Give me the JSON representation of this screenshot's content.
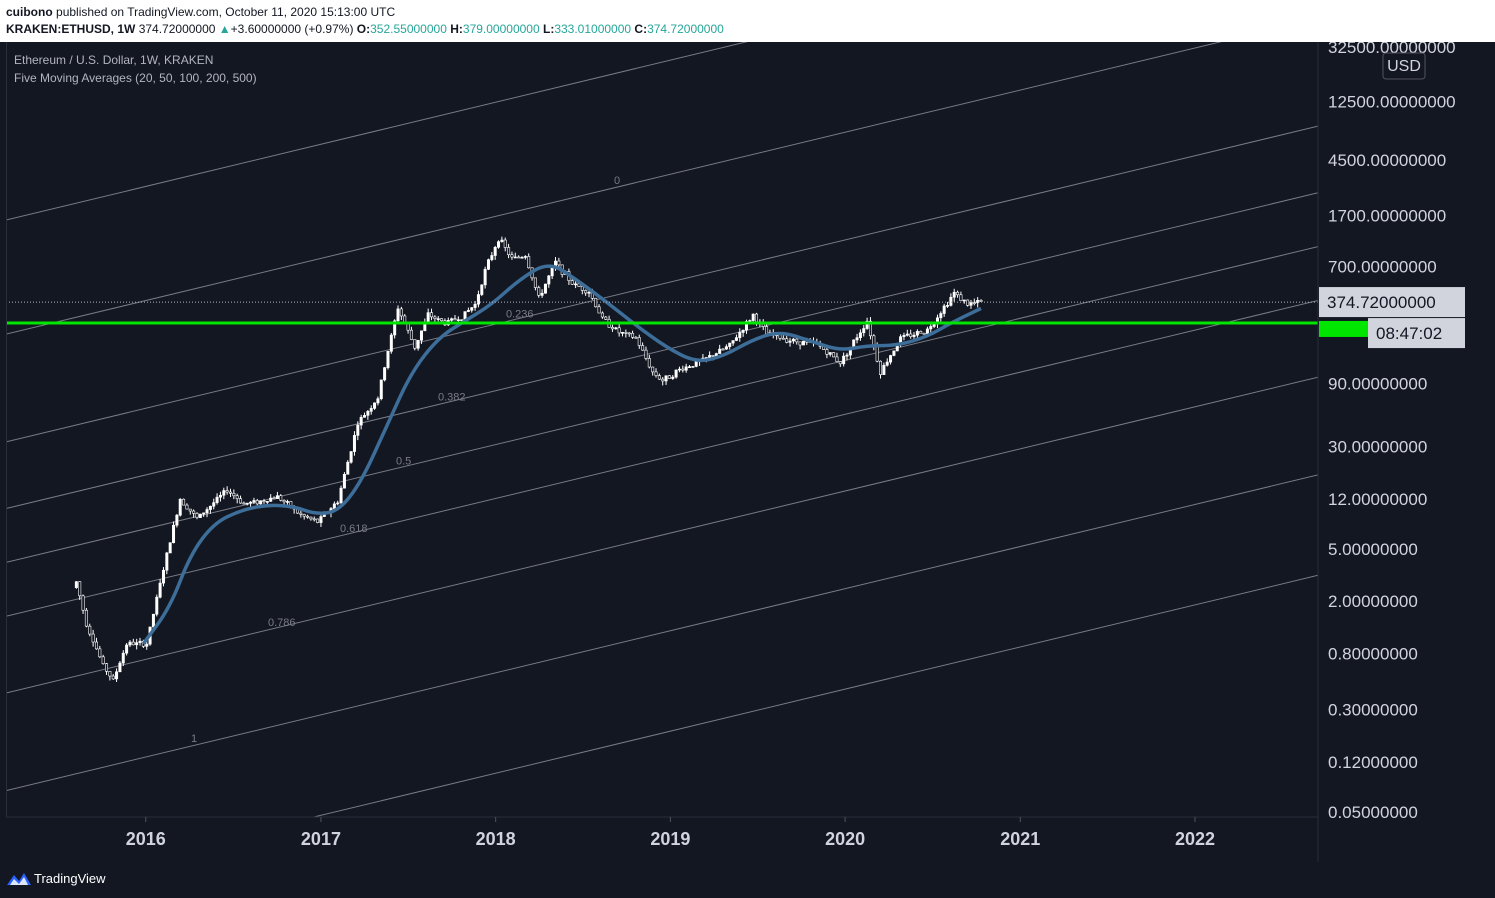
{
  "header": {
    "author": "cuibono",
    "published_text": "published on TradingView.com, October 11, 2020 15:13:00 UTC",
    "symbol": "KRAKEN:ETHUSD, 1W",
    "last": "374.72000000",
    "change_arrow": "▲",
    "change": "+3.60000000 (+0.97%)",
    "open_label": "O:",
    "open": "352.55000000",
    "high_label": "H:",
    "high": "379.00000000",
    "low_label": "L:",
    "low": "333.01000000",
    "close_label": "C:",
    "close": "374.72000000"
  },
  "legend": {
    "title": "Ethereum / U.S. Dollar, 1W, KRAKEN",
    "indicator": "Five Moving Averages (20, 50, 100, 200, 500)"
  },
  "footer": {
    "brand": "TradingView"
  },
  "colors": {
    "background": "#131722",
    "candle": "#ffffff",
    "ma": "#3d6e99",
    "support_line": "#00e600",
    "fib_line": "#787b86",
    "price_tag_bg": "#d1d4dc"
  },
  "chart_data": {
    "type": "candlestick",
    "y_scale": "log",
    "ylim": [
      0.05,
      32500
    ],
    "xlim": [
      "2015-03-15",
      "2022-09-15"
    ],
    "currency_label": "USD",
    "y_ticks": [
      "32500.00000000",
      "12500.00000000",
      "4500.00000000",
      "1700.00000000",
      "700.00000000",
      "90.00000000",
      "30.00000000",
      "12.00000000",
      "5.00000000",
      "2.00000000",
      "0.80000000",
      "0.30000000",
      "0.12000000",
      "0.05000000"
    ],
    "y_tick_values": [
      32500,
      12500,
      4500,
      1700,
      700,
      90,
      30,
      12,
      5,
      2,
      0.8,
      0.3,
      0.12,
      0.05
    ],
    "x_ticks": [
      "2016",
      "2017",
      "2018",
      "2019",
      "2020",
      "2021",
      "2022"
    ],
    "x_tick_dates": [
      "2016-01-01",
      "2017-01-01",
      "2018-01-01",
      "2019-01-01",
      "2020-01-01",
      "2021-01-01",
      "2022-01-01"
    ],
    "last_price_label": "374.72000000",
    "last_price_value": 374.72,
    "countdown_label": "08:47:02",
    "support_level": 260,
    "fib_channel_levels": [
      "0",
      "0.236",
      "0.382",
      "0.5",
      "0.618",
      "0.786",
      "1"
    ],
    "price_path": [
      [
        "2015-08-09",
        2.8
      ],
      [
        "2015-08-30",
        1.35
      ],
      [
        "2015-10-04",
        0.65
      ],
      [
        "2015-10-25",
        0.5
      ],
      [
        "2015-11-22",
        0.95
      ],
      [
        "2016-01-03",
        0.95
      ],
      [
        "2016-02-07",
        3.5
      ],
      [
        "2016-03-13",
        12
      ],
      [
        "2016-04-17",
        8.5
      ],
      [
        "2016-06-19",
        14
      ],
      [
        "2016-07-24",
        11
      ],
      [
        "2016-08-28",
        11.5
      ],
      [
        "2016-10-02",
        12.5
      ],
      [
        "2016-11-20",
        9
      ],
      [
        "2016-12-25",
        8
      ],
      [
        "2017-02-05",
        11.5
      ],
      [
        "2017-03-19",
        45
      ],
      [
        "2017-04-30",
        70
      ],
      [
        "2017-05-21",
        160
      ],
      [
        "2017-06-11",
        340
      ],
      [
        "2017-07-16",
        170
      ],
      [
        "2017-08-13",
        300
      ],
      [
        "2017-09-17",
        260
      ],
      [
        "2017-10-22",
        290
      ],
      [
        "2017-11-19",
        360
      ],
      [
        "2017-12-10",
        650
      ],
      [
        "2018-01-07",
        1150
      ],
      [
        "2018-02-04",
        800
      ],
      [
        "2018-03-04",
        850
      ],
      [
        "2018-04-01",
        400
      ],
      [
        "2018-05-06",
        750
      ],
      [
        "2018-06-10",
        520
      ],
      [
        "2018-07-15",
        450
      ],
      [
        "2018-08-12",
        280
      ],
      [
        "2018-09-16",
        220
      ],
      [
        "2018-10-21",
        200
      ],
      [
        "2018-11-25",
        110
      ],
      [
        "2018-12-16",
        95
      ],
      [
        "2019-01-20",
        115
      ],
      [
        "2019-03-10",
        135
      ],
      [
        "2019-05-05",
        175
      ],
      [
        "2019-06-23",
        300
      ],
      [
        "2019-07-21",
        215
      ],
      [
        "2019-09-15",
        190
      ],
      [
        "2019-11-03",
        180
      ],
      [
        "2019-12-22",
        130
      ],
      [
        "2020-02-16",
        270
      ],
      [
        "2020-03-15",
        110
      ],
      [
        "2020-04-26",
        200
      ],
      [
        "2020-06-21",
        230
      ],
      [
        "2020-08-16",
        440
      ],
      [
        "2020-09-13",
        360
      ],
      [
        "2020-10-11",
        375
      ]
    ],
    "moving_average_path": [
      [
        "2015-12-27",
        0.95
      ],
      [
        "2016-02-21",
        1.8
      ],
      [
        "2016-04-03",
        4.5
      ],
      [
        "2016-05-22",
        7.8
      ],
      [
        "2016-07-17",
        9.8
      ],
      [
        "2016-09-11",
        10.8
      ],
      [
        "2016-11-06",
        10.5
      ],
      [
        "2016-12-18",
        9.2
      ],
      [
        "2017-02-05",
        9.5
      ],
      [
        "2017-03-26",
        16
      ],
      [
        "2017-05-21",
        45
      ],
      [
        "2017-07-09",
        110
      ],
      [
        "2017-09-03",
        200
      ],
      [
        "2017-10-29",
        270
      ],
      [
        "2017-12-24",
        360
      ],
      [
        "2018-02-18",
        550
      ],
      [
        "2018-04-22",
        760
      ],
      [
        "2018-06-17",
        560
      ],
      [
        "2018-08-19",
        380
      ],
      [
        "2018-10-21",
        250
      ],
      [
        "2018-12-23",
        170
      ],
      [
        "2019-02-24",
        130
      ],
      [
        "2019-04-21",
        145
      ],
      [
        "2019-06-23",
        195
      ],
      [
        "2019-08-18",
        225
      ],
      [
        "2019-10-20",
        190
      ],
      [
        "2019-12-22",
        160
      ],
      [
        "2020-02-16",
        175
      ],
      [
        "2020-04-19",
        175
      ],
      [
        "2020-06-21",
        205
      ],
      [
        "2020-08-09",
        260
      ],
      [
        "2020-10-11",
        335
      ]
    ]
  }
}
